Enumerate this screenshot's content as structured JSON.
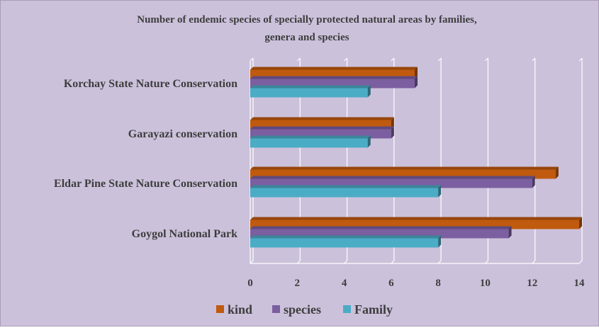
{
  "chart_data": {
    "type": "bar",
    "orientation": "horizontal",
    "title_lines": [
      "Number of endemic species  of specially protected  natural areas  by families,",
      "genera and species"
    ],
    "categories": [
      "Korchay State Nature Conservation",
      "Garayazi conservation",
      "Eldar Pine State Nature Conservation",
      "Goygol National Park"
    ],
    "series": [
      {
        "name": "kind",
        "color": "#c05a0e",
        "values": [
          7,
          6,
          13,
          14
        ]
      },
      {
        "name": "species",
        "color": "#7b5fa0",
        "values": [
          7,
          6,
          12,
          11
        ]
      },
      {
        "name": "Family",
        "color": "#4bacc6",
        "values": [
          5,
          5,
          8,
          8
        ]
      }
    ],
    "xlim": [
      0,
      14
    ],
    "x_ticks": [
      "0",
      "2",
      "4",
      "6",
      "8",
      "10",
      "12",
      "14"
    ],
    "grid": true,
    "legend_position": "bottom",
    "style": {
      "background": "#ccc1db",
      "border": "#a89cb8",
      "grid": "#ffffff",
      "text": "#3d3d3d"
    }
  }
}
